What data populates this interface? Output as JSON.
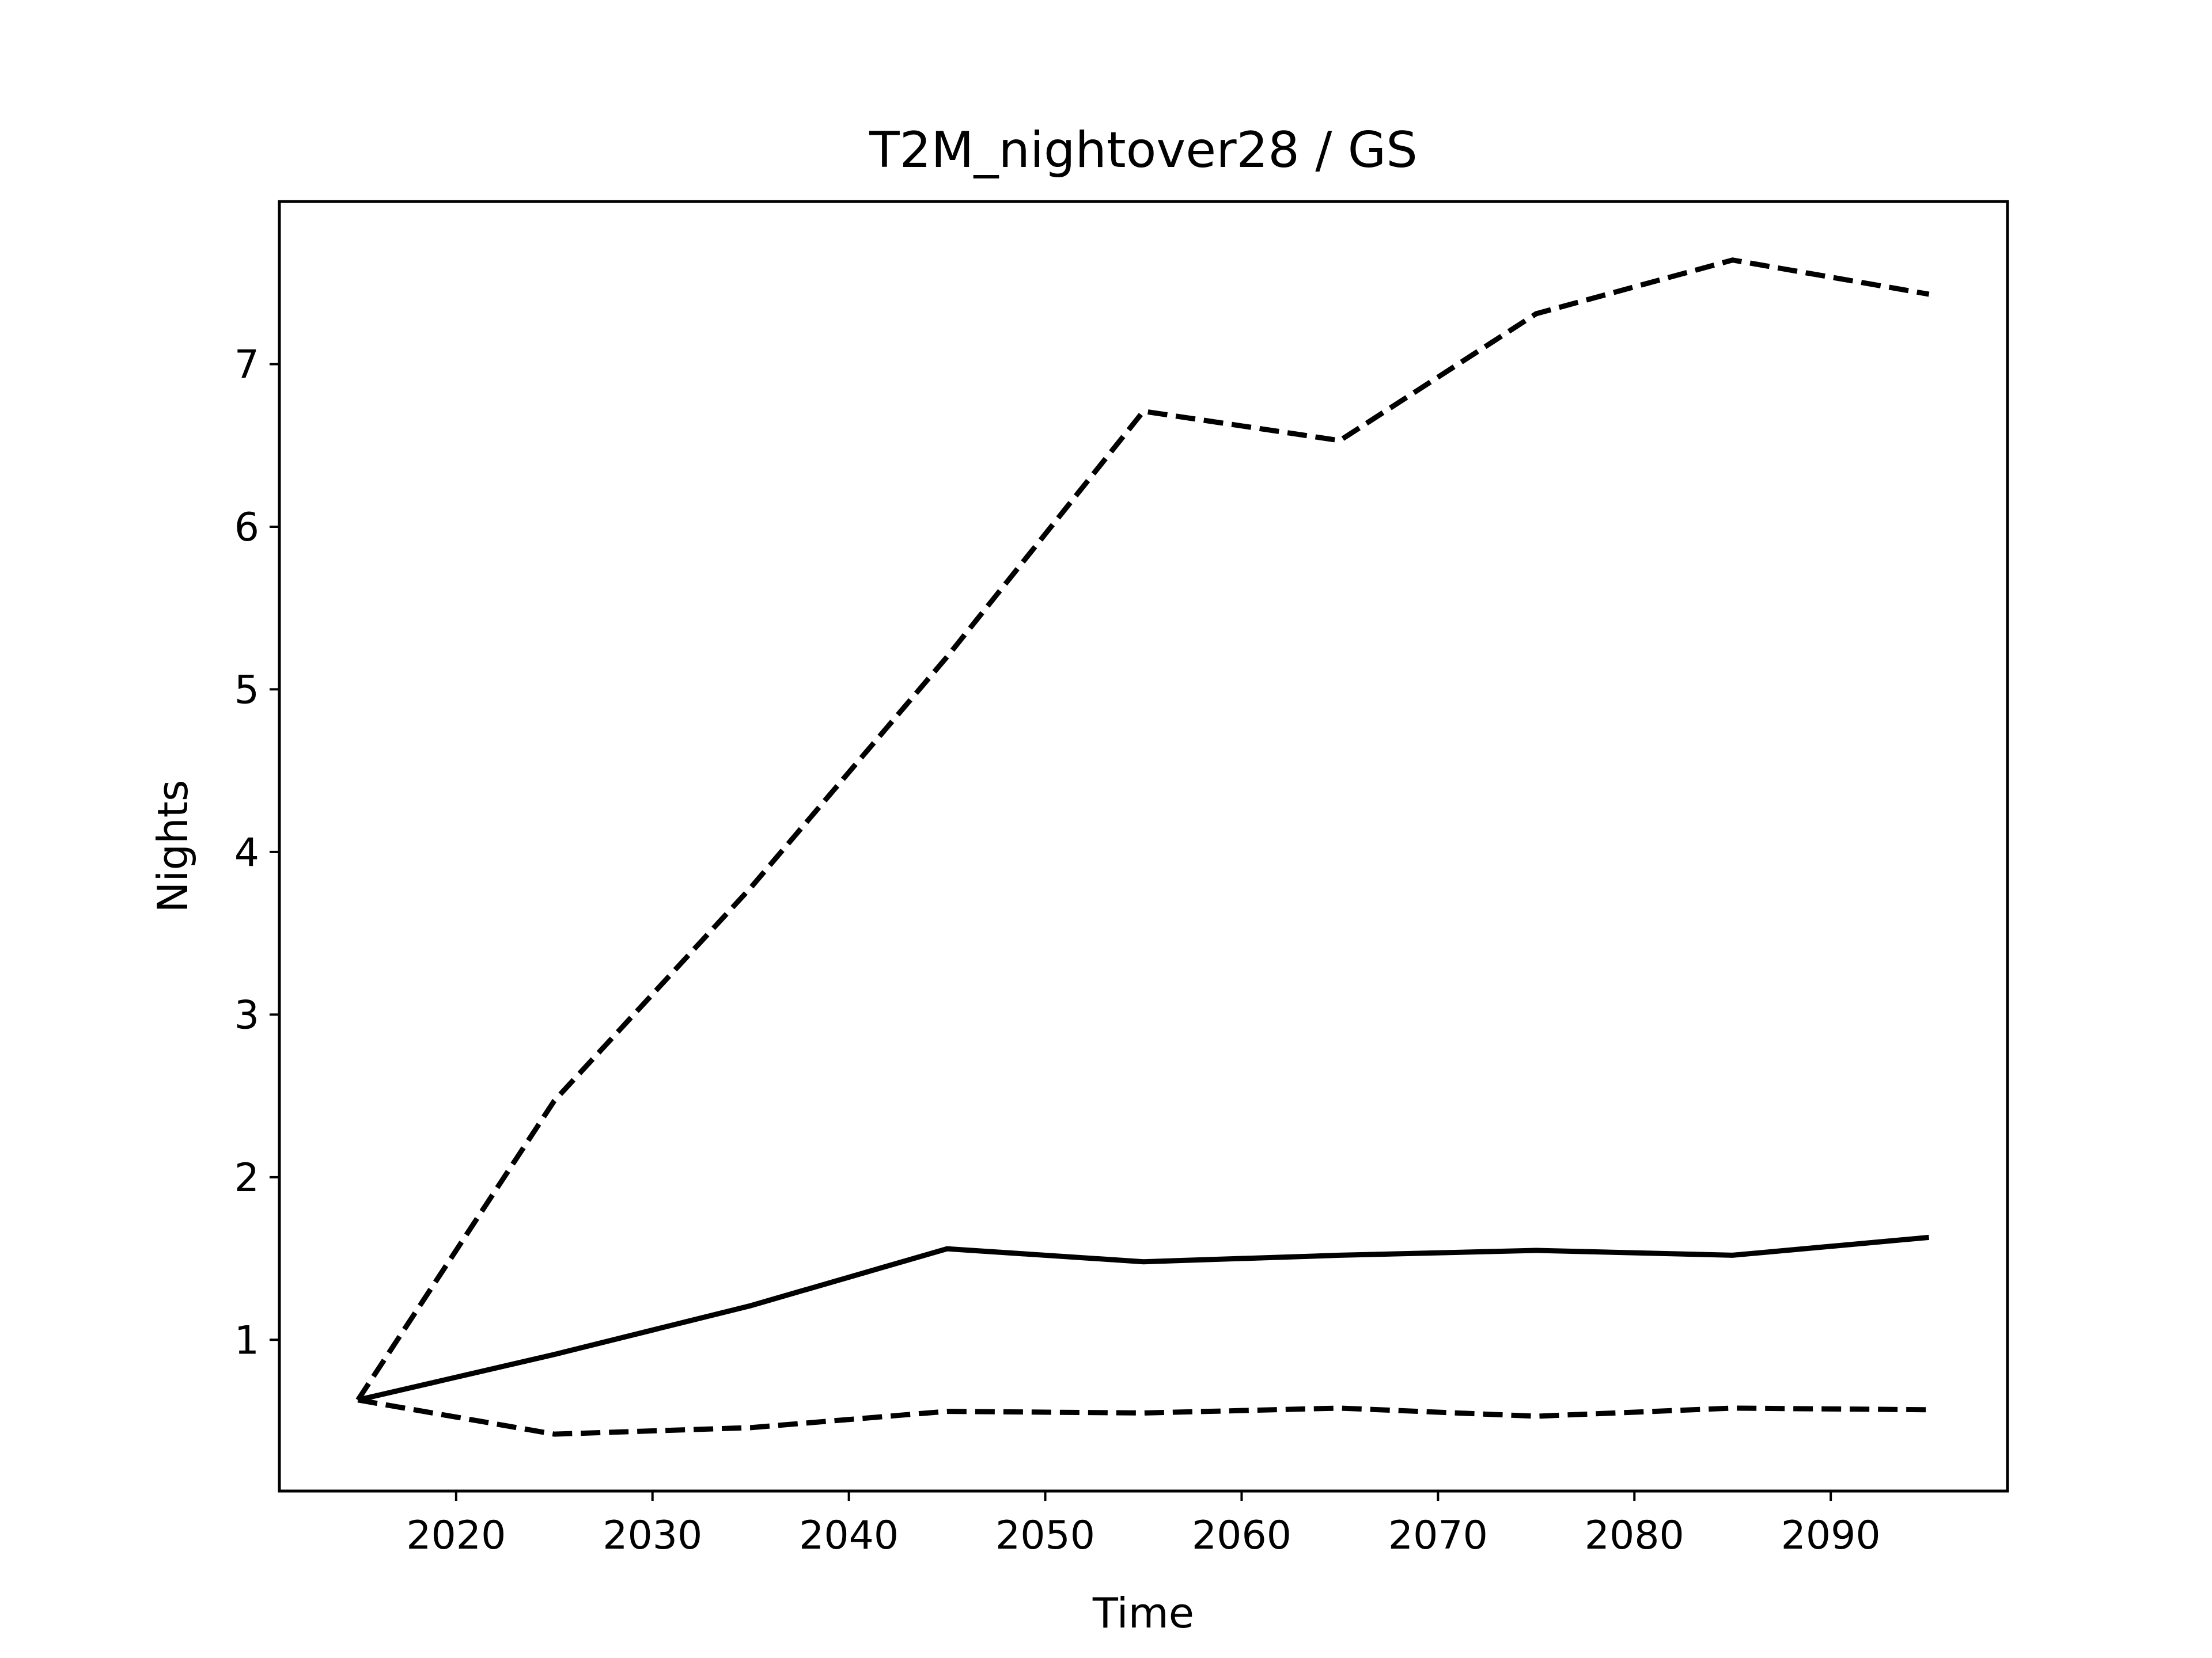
{
  "chart_data": {
    "type": "line",
    "title": "T2M_nightover28 / GS",
    "xlabel": "Time",
    "ylabel": "Nights",
    "xlim": [
      2011,
      2099
    ],
    "ylim": [
      0.07,
      8.0
    ],
    "xticks": [
      2020,
      2030,
      2040,
      2050,
      2060,
      2070,
      2080,
      2090
    ],
    "yticks": [
      1,
      2,
      3,
      4,
      5,
      6,
      7
    ],
    "grid": false,
    "x": [
      2015,
      2025,
      2035,
      2045,
      2055,
      2065,
      2075,
      2085,
      2095
    ],
    "series": [
      {
        "style": "solid",
        "color": "#000000",
        "values": [
          0.63,
          0.91,
          1.21,
          1.56,
          1.48,
          1.52,
          1.55,
          1.52,
          1.63
        ]
      },
      {
        "style": "dashed",
        "color": "#000000",
        "values": [
          0.63,
          2.47,
          3.78,
          5.2,
          6.71,
          6.53,
          7.31,
          7.64,
          7.43
        ]
      },
      {
        "style": "dashed",
        "color": "#000000",
        "values": [
          0.63,
          0.42,
          0.46,
          0.56,
          0.55,
          0.58,
          0.53,
          0.58,
          0.57
        ]
      }
    ]
  }
}
